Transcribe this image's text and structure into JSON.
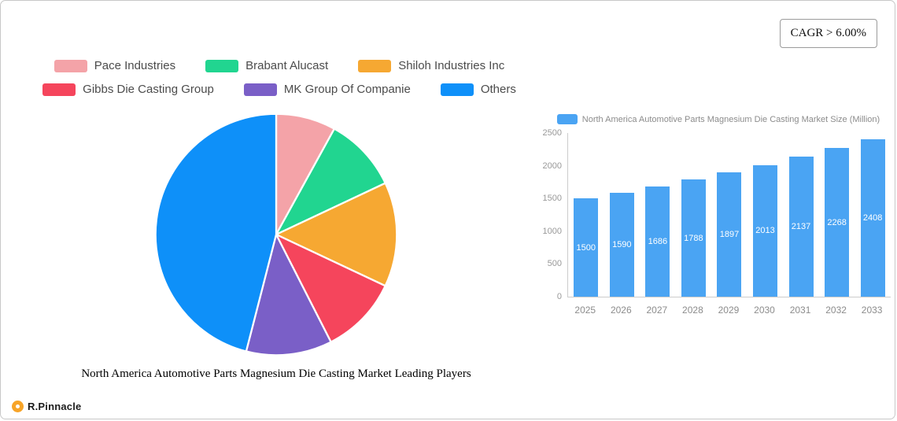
{
  "cagr_label": "CAGR > 6.00%",
  "logo": {
    "text": "R.Pinnacle"
  },
  "chart_data": [
    {
      "type": "pie",
      "title": "North America Automotive Parts Magnesium Die Casting Market Leading Players",
      "legend_position": "top",
      "segments": [
        {
          "label": "Pace Industries",
          "color": "#f4a3a8",
          "value": 8
        },
        {
          "label": "Brabant Alucast",
          "color": "#21d590",
          "value": 10
        },
        {
          "label": "Shiloh Industries Inc",
          "color": "#f6a832",
          "value": 14
        },
        {
          "label": "Gibbs Die Casting Group",
          "color": "#f5455c",
          "value": 10.5
        },
        {
          "label": "MK Group Of Companie",
          "color": "#7a5fc7",
          "value": 11.5
        },
        {
          "label": "Others",
          "color": "#0e90f9",
          "value": 46
        }
      ]
    },
    {
      "type": "bar",
      "series_name": "North America Automotive Parts Magnesium Die Casting Market Size (Million)",
      "categories": [
        "2025",
        "2026",
        "2027",
        "2028",
        "2029",
        "2030",
        "2031",
        "2032",
        "2033"
      ],
      "values": [
        1500,
        1590,
        1686,
        1788,
        1897,
        2013,
        2137,
        2268,
        2408
      ],
      "bar_color": "#4aa4f3",
      "ylim": [
        0,
        2500
      ],
      "yticks": [
        0,
        500,
        1000,
        1500,
        2000,
        2500
      ],
      "grid": false,
      "legend_position": "top",
      "value_labels": "inside-white"
    }
  ]
}
